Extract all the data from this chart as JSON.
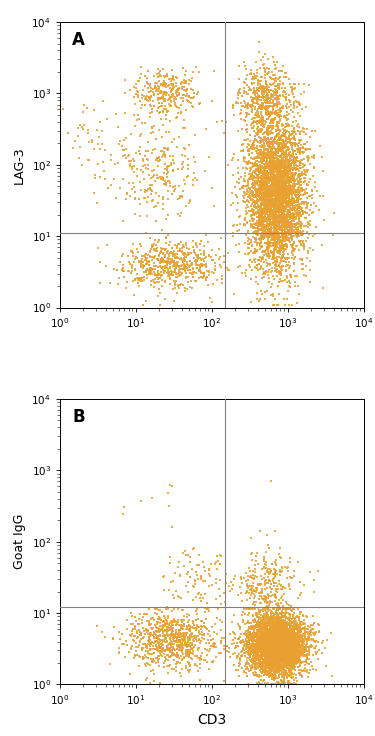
{
  "background_color": "#ffffff",
  "dot_color": "#E8A030",
  "dot_size": 4.0,
  "dot_alpha": 0.85,
  "panel_A_label": "A",
  "panel_B_label": "B",
  "xlabel": "CD3",
  "ylabel_A": "LAG-3",
  "ylabel_B": "Goat IgG",
  "xline": 150,
  "yline_A": 11,
  "yline_B": 12,
  "xlim": [
    1,
    10000
  ],
  "ylim": [
    1,
    10000
  ],
  "line_color": "#808080",
  "line_width": 0.8,
  "seed_A": 42,
  "seed_B": 99
}
